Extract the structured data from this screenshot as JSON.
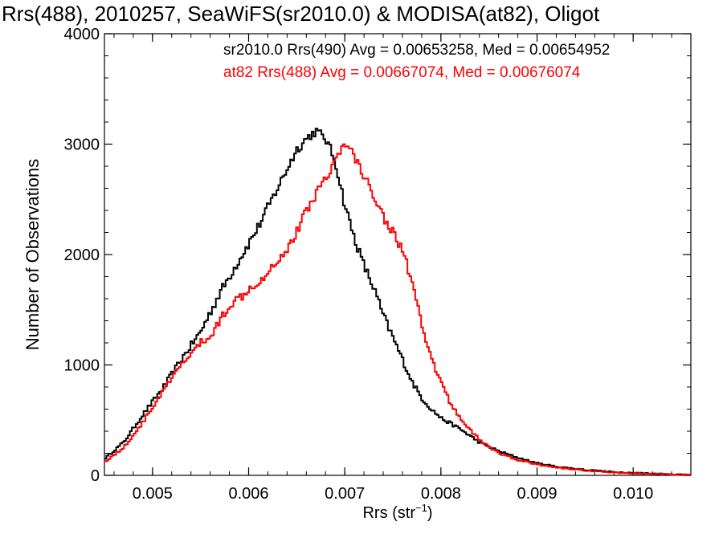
{
  "chart_data": {
    "type": "line",
    "title": "Rrs(488), 2010257, SeaWiFS(sr2010.0) & MODISA(at82), Oligot",
    "xlabel": "Rrs (str",
    "xlabel_sup": "−1",
    "xlabel_close": ")",
    "ylabel": "Number of Observations",
    "xlim": [
      0.0045,
      0.0106
    ],
    "ylim": [
      0,
      4000
    ],
    "xticks": [
      0.005,
      0.006,
      0.007,
      0.008,
      0.009,
      0.01
    ],
    "xtick_labels": [
      "0.005",
      "0.006",
      "0.007",
      "0.008",
      "0.009",
      "0.010"
    ],
    "yticks": [
      0,
      1000,
      2000,
      3000,
      4000
    ],
    "ytick_labels": [
      "0",
      "1000",
      "2000",
      "3000",
      "4000"
    ],
    "grid": false,
    "legend_position": "top-right",
    "series": [
      {
        "name": "sr2010.0 Rrs(490) Avg = 0.00653258, Med = 0.00654952",
        "color": "#000000",
        "x": [
          0.0045,
          0.0047,
          0.0049,
          0.0051,
          0.0053,
          0.0055,
          0.0057,
          0.0059,
          0.0061,
          0.0063,
          0.0065,
          0.0066,
          0.0067,
          0.0068,
          0.0069,
          0.007,
          0.0071,
          0.0072,
          0.0073,
          0.0074,
          0.0075,
          0.0076,
          0.0077,
          0.0078,
          0.0079,
          0.008,
          0.0082,
          0.0084,
          0.0086,
          0.0088,
          0.009,
          0.0092,
          0.0095,
          0.0098,
          0.0101,
          0.0104,
          0.0106
        ],
        "y": [
          150,
          300,
          550,
          780,
          1050,
          1300,
          1650,
          1950,
          2250,
          2600,
          2950,
          3050,
          3120,
          3050,
          2850,
          2450,
          2150,
          1900,
          1700,
          1450,
          1250,
          1050,
          850,
          700,
          600,
          520,
          420,
          300,
          220,
          160,
          110,
          80,
          50,
          30,
          20,
          10,
          5
        ]
      },
      {
        "name": "at82 Rrs(488) Avg = 0.00667074, Med = 0.00676074",
        "color": "#ff0000",
        "x": [
          0.0045,
          0.0047,
          0.0049,
          0.0051,
          0.0053,
          0.0055,
          0.0056,
          0.0057,
          0.0058,
          0.0059,
          0.006,
          0.0061,
          0.0062,
          0.0063,
          0.0064,
          0.0065,
          0.0066,
          0.0067,
          0.0068,
          0.0069,
          0.007,
          0.0071,
          0.0072,
          0.0073,
          0.0074,
          0.0075,
          0.0076,
          0.0077,
          0.0078,
          0.0079,
          0.008,
          0.0081,
          0.0082,
          0.0083,
          0.0084,
          0.0086,
          0.0088,
          0.009,
          0.0092,
          0.0095,
          0.0098,
          0.0101,
          0.0104,
          0.0106
        ],
        "y": [
          120,
          250,
          480,
          750,
          1000,
          1200,
          1250,
          1400,
          1550,
          1600,
          1700,
          1750,
          1850,
          1950,
          2050,
          2200,
          2400,
          2550,
          2700,
          2850,
          3000,
          2900,
          2700,
          2550,
          2350,
          2200,
          2050,
          1750,
          1350,
          1050,
          850,
          650,
          520,
          420,
          320,
          200,
          140,
          100,
          70,
          45,
          25,
          15,
          8,
          4
        ]
      }
    ]
  }
}
